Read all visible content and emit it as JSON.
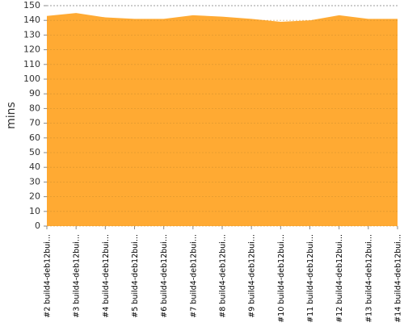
{
  "chart_data": {
    "type": "area",
    "ylabel": "mins",
    "categories": [
      "#2 build4-deb12bui...",
      "#3 build4-deb12bui...",
      "#4 build4-deb12bui...",
      "#5 build4-deb12bui...",
      "#6 build4-deb12bui...",
      "#7 build4-deb12bui...",
      "#8 build4-deb12bui...",
      "#9 build4-deb12bui...",
      "#10 build4-deb12bui...",
      "#11 build4-deb12bui...",
      "#12 build4-deb12bui...",
      "#13 build4-deb12bui...",
      "#14 build4-deb12bui..."
    ],
    "values": [
      143,
      145,
      142,
      141,
      141,
      143.5,
      142.5,
      141,
      139,
      140,
      143.5,
      141,
      141
    ],
    "color": "#ffaa33",
    "ylim": [
      0,
      150
    ],
    "yticks": [
      0,
      10,
      20,
      30,
      40,
      50,
      60,
      70,
      80,
      90,
      100,
      110,
      120,
      130,
      140,
      150
    ],
    "grid": true
  }
}
